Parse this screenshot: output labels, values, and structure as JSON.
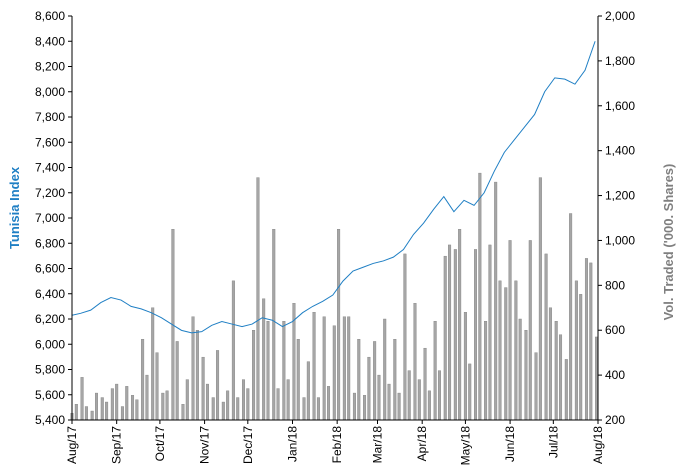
{
  "chart_data": {
    "type": "bar+line",
    "title": "",
    "colors": {
      "index_line": "#1f7fc4",
      "volume_bar": "#a6a6a6",
      "volume_bar_edge": "#7f7f7f",
      "left_axis_title": "#1f7fc4",
      "right_axis_title": "#7f7f7f",
      "axis": "#000000"
    },
    "y_left": {
      "label": "Tunisia Index",
      "min": 5400,
      "max": 8600,
      "ticks": [
        "5,400",
        "5,600",
        "5,800",
        "6,000",
        "6,200",
        "6,400",
        "6,600",
        "6,800",
        "7,000",
        "7,200",
        "7,400",
        "7,600",
        "7,800",
        "8,000",
        "8,200",
        "8,400",
        "8,600"
      ]
    },
    "y_right": {
      "label": "Vol. Traded ('000. Shares)",
      "min": 200,
      "max": 2000,
      "ticks": [
        "200",
        "400",
        "600",
        "800",
        "1,000",
        "1,200",
        "1,400",
        "1,600",
        "1,800",
        "2,000"
      ]
    },
    "x_axis": {
      "start": "2017-08-01",
      "end": "2018-08-01",
      "labels": [
        {
          "date": "2017-08-01",
          "label": "Aug/17"
        },
        {
          "date": "2017-09-01",
          "label": "Sep/17"
        },
        {
          "date": "2017-10-01",
          "label": "Oct/17"
        },
        {
          "date": "2017-11-01",
          "label": "Nov/17"
        },
        {
          "date": "2017-12-01",
          "label": "Dec/17"
        },
        {
          "date": "2018-01-01",
          "label": "Jan/18"
        },
        {
          "date": "2018-02-01",
          "label": "Feb/18"
        },
        {
          "date": "2018-03-01",
          "label": "Mar/18"
        },
        {
          "date": "2018-04-01",
          "label": "Apr/18"
        },
        {
          "date": "2018-05-01",
          "label": "May/18"
        },
        {
          "date": "2018-06-01",
          "label": "Jun/18"
        },
        {
          "date": "2018-07-01",
          "label": "Jul/18"
        },
        {
          "date": "2018-08-01",
          "label": "Aug/18"
        }
      ]
    },
    "index_series": [
      {
        "date": "2017-08-01",
        "value": 6230
      },
      {
        "date": "2017-08-07",
        "value": 6245
      },
      {
        "date": "2017-08-14",
        "value": 6270
      },
      {
        "date": "2017-08-21",
        "value": 6330
      },
      {
        "date": "2017-08-28",
        "value": 6370
      },
      {
        "date": "2017-09-04",
        "value": 6350
      },
      {
        "date": "2017-09-11",
        "value": 6300
      },
      {
        "date": "2017-09-18",
        "value": 6280
      },
      {
        "date": "2017-09-25",
        "value": 6250
      },
      {
        "date": "2017-10-02",
        "value": 6210
      },
      {
        "date": "2017-10-09",
        "value": 6160
      },
      {
        "date": "2017-10-16",
        "value": 6110
      },
      {
        "date": "2017-10-23",
        "value": 6090
      },
      {
        "date": "2017-10-30",
        "value": 6100
      },
      {
        "date": "2017-11-06",
        "value": 6150
      },
      {
        "date": "2017-11-13",
        "value": 6180
      },
      {
        "date": "2017-11-20",
        "value": 6160
      },
      {
        "date": "2017-11-27",
        "value": 6140
      },
      {
        "date": "2017-12-04",
        "value": 6160
      },
      {
        "date": "2017-12-11",
        "value": 6210
      },
      {
        "date": "2017-12-18",
        "value": 6190
      },
      {
        "date": "2017-12-25",
        "value": 6140
      },
      {
        "date": "2018-01-01",
        "value": 6180
      },
      {
        "date": "2018-01-08",
        "value": 6250
      },
      {
        "date": "2018-01-15",
        "value": 6300
      },
      {
        "date": "2018-01-22",
        "value": 6340
      },
      {
        "date": "2018-01-29",
        "value": 6390
      },
      {
        "date": "2018-02-05",
        "value": 6500
      },
      {
        "date": "2018-02-12",
        "value": 6580
      },
      {
        "date": "2018-02-19",
        "value": 6610
      },
      {
        "date": "2018-02-26",
        "value": 6640
      },
      {
        "date": "2018-03-05",
        "value": 6660
      },
      {
        "date": "2018-03-12",
        "value": 6690
      },
      {
        "date": "2018-03-19",
        "value": 6750
      },
      {
        "date": "2018-03-26",
        "value": 6870
      },
      {
        "date": "2018-04-02",
        "value": 6960
      },
      {
        "date": "2018-04-09",
        "value": 7070
      },
      {
        "date": "2018-04-16",
        "value": 7170
      },
      {
        "date": "2018-04-23",
        "value": 7050
      },
      {
        "date": "2018-04-30",
        "value": 7140
      },
      {
        "date": "2018-05-07",
        "value": 7100
      },
      {
        "date": "2018-05-14",
        "value": 7200
      },
      {
        "date": "2018-05-21",
        "value": 7370
      },
      {
        "date": "2018-05-28",
        "value": 7520
      },
      {
        "date": "2018-06-04",
        "value": 7620
      },
      {
        "date": "2018-06-11",
        "value": 7720
      },
      {
        "date": "2018-06-18",
        "value": 7820
      },
      {
        "date": "2018-06-25",
        "value": 8000
      },
      {
        "date": "2018-07-02",
        "value": 8110
      },
      {
        "date": "2018-07-09",
        "value": 8100
      },
      {
        "date": "2018-07-16",
        "value": 8060
      },
      {
        "date": "2018-07-23",
        "value": 8170
      },
      {
        "date": "2018-07-30",
        "value": 8400
      }
    ],
    "volume_series": [
      {
        "date": "2017-08-01",
        "value": 230
      },
      {
        "date": "2017-08-04",
        "value": 270
      },
      {
        "date": "2017-08-08",
        "value": 390
      },
      {
        "date": "2017-08-11",
        "value": 260
      },
      {
        "date": "2017-08-15",
        "value": 240
      },
      {
        "date": "2017-08-18",
        "value": 320
      },
      {
        "date": "2017-08-22",
        "value": 300
      },
      {
        "date": "2017-08-25",
        "value": 280
      },
      {
        "date": "2017-08-29",
        "value": 340
      },
      {
        "date": "2017-09-01",
        "value": 360
      },
      {
        "date": "2017-09-05",
        "value": 260
      },
      {
        "date": "2017-09-08",
        "value": 350
      },
      {
        "date": "2017-09-12",
        "value": 310
      },
      {
        "date": "2017-09-15",
        "value": 290
      },
      {
        "date": "2017-09-19",
        "value": 560
      },
      {
        "date": "2017-09-22",
        "value": 400
      },
      {
        "date": "2017-09-26",
        "value": 700
      },
      {
        "date": "2017-09-29",
        "value": 500
      },
      {
        "date": "2017-10-03",
        "value": 320
      },
      {
        "date": "2017-10-06",
        "value": 330
      },
      {
        "date": "2017-10-10",
        "value": 1050
      },
      {
        "date": "2017-10-13",
        "value": 550
      },
      {
        "date": "2017-10-17",
        "value": 270
      },
      {
        "date": "2017-10-20",
        "value": 380
      },
      {
        "date": "2017-10-24",
        "value": 660
      },
      {
        "date": "2017-10-27",
        "value": 600
      },
      {
        "date": "2017-10-31",
        "value": 480
      },
      {
        "date": "2017-11-03",
        "value": 360
      },
      {
        "date": "2017-11-07",
        "value": 300
      },
      {
        "date": "2017-11-10",
        "value": 510
      },
      {
        "date": "2017-11-14",
        "value": 280
      },
      {
        "date": "2017-11-17",
        "value": 330
      },
      {
        "date": "2017-11-21",
        "value": 820
      },
      {
        "date": "2017-11-24",
        "value": 300
      },
      {
        "date": "2017-11-28",
        "value": 380
      },
      {
        "date": "2017-12-01",
        "value": 340
      },
      {
        "date": "2017-12-05",
        "value": 600
      },
      {
        "date": "2017-12-08",
        "value": 1280
      },
      {
        "date": "2017-12-12",
        "value": 740
      },
      {
        "date": "2017-12-15",
        "value": 640
      },
      {
        "date": "2017-12-19",
        "value": 1050
      },
      {
        "date": "2017-12-22",
        "value": 340
      },
      {
        "date": "2017-12-26",
        "value": 640
      },
      {
        "date": "2017-12-29",
        "value": 380
      },
      {
        "date": "2018-01-02",
        "value": 720
      },
      {
        "date": "2018-01-05",
        "value": 560
      },
      {
        "date": "2018-01-09",
        "value": 300
      },
      {
        "date": "2018-01-12",
        "value": 460
      },
      {
        "date": "2018-01-16",
        "value": 680
      },
      {
        "date": "2018-01-19",
        "value": 300
      },
      {
        "date": "2018-01-23",
        "value": 660
      },
      {
        "date": "2018-01-26",
        "value": 350
      },
      {
        "date": "2018-01-30",
        "value": 620
      },
      {
        "date": "2018-02-02",
        "value": 1050
      },
      {
        "date": "2018-02-06",
        "value": 660
      },
      {
        "date": "2018-02-09",
        "value": 660
      },
      {
        "date": "2018-02-13",
        "value": 320
      },
      {
        "date": "2018-02-16",
        "value": 560
      },
      {
        "date": "2018-02-20",
        "value": 310
      },
      {
        "date": "2018-02-23",
        "value": 480
      },
      {
        "date": "2018-02-27",
        "value": 550
      },
      {
        "date": "2018-03-02",
        "value": 400
      },
      {
        "date": "2018-03-06",
        "value": 650
      },
      {
        "date": "2018-03-09",
        "value": 360
      },
      {
        "date": "2018-03-13",
        "value": 560
      },
      {
        "date": "2018-03-16",
        "value": 320
      },
      {
        "date": "2018-03-20",
        "value": 940
      },
      {
        "date": "2018-03-23",
        "value": 420
      },
      {
        "date": "2018-03-27",
        "value": 720
      },
      {
        "date": "2018-03-30",
        "value": 380
      },
      {
        "date": "2018-04-03",
        "value": 520
      },
      {
        "date": "2018-04-06",
        "value": 330
      },
      {
        "date": "2018-04-10",
        "value": 640
      },
      {
        "date": "2018-04-13",
        "value": 420
      },
      {
        "date": "2018-04-17",
        "value": 930
      },
      {
        "date": "2018-04-20",
        "value": 980
      },
      {
        "date": "2018-04-24",
        "value": 960
      },
      {
        "date": "2018-04-27",
        "value": 1050
      },
      {
        "date": "2018-05-01",
        "value": 680
      },
      {
        "date": "2018-05-04",
        "value": 450
      },
      {
        "date": "2018-05-08",
        "value": 960
      },
      {
        "date": "2018-05-11",
        "value": 1300
      },
      {
        "date": "2018-05-15",
        "value": 640
      },
      {
        "date": "2018-05-18",
        "value": 980
      },
      {
        "date": "2018-05-22",
        "value": 1260
      },
      {
        "date": "2018-05-25",
        "value": 820
      },
      {
        "date": "2018-05-29",
        "value": 790
      },
      {
        "date": "2018-06-01",
        "value": 1000
      },
      {
        "date": "2018-06-05",
        "value": 820
      },
      {
        "date": "2018-06-08",
        "value": 650
      },
      {
        "date": "2018-06-12",
        "value": 600
      },
      {
        "date": "2018-06-15",
        "value": 1000
      },
      {
        "date": "2018-06-19",
        "value": 500
      },
      {
        "date": "2018-06-22",
        "value": 1280
      },
      {
        "date": "2018-06-26",
        "value": 940
      },
      {
        "date": "2018-06-29",
        "value": 700
      },
      {
        "date": "2018-07-03",
        "value": 640
      },
      {
        "date": "2018-07-06",
        "value": 580
      },
      {
        "date": "2018-07-10",
        "value": 470
      },
      {
        "date": "2018-07-13",
        "value": 1120
      },
      {
        "date": "2018-07-17",
        "value": 820
      },
      {
        "date": "2018-07-20",
        "value": 760
      },
      {
        "date": "2018-07-24",
        "value": 920
      },
      {
        "date": "2018-07-27",
        "value": 900
      },
      {
        "date": "2018-07-31",
        "value": 570
      }
    ]
  }
}
